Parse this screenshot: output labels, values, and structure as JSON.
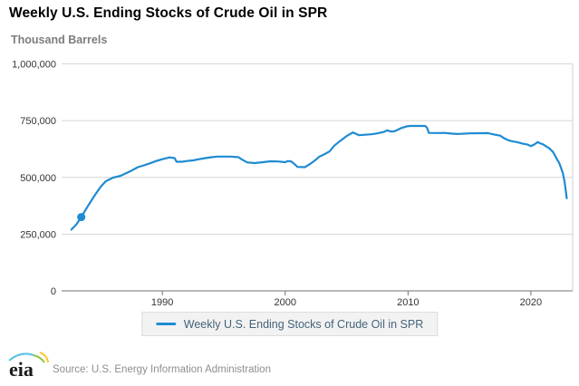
{
  "title": "Weekly U.S. Ending Stocks of Crude Oil in SPR",
  "units_label": "Thousand Barrels",
  "legend": {
    "label": "Weekly U.S. Ending Stocks of Crude Oil in SPR"
  },
  "footer": {
    "logo_text": "eia",
    "source": "Source: U.S. Energy Information Administration"
  },
  "colors": {
    "line": "#1e8bd2",
    "grid": "#d6d6d6",
    "zero_axis": "#707070",
    "plot_border": "#cfcfcf",
    "tick_text": "#333333",
    "title_text": "#000000",
    "units_text": "#7d7d7d",
    "legend_bg": "#f2f2f2",
    "legend_text": "#44637a",
    "source_text": "#8e8e8e",
    "logo_blue": "#5bc2e7",
    "logo_green": "#8dc63f",
    "logo_yellow": "#ffc425"
  },
  "chart_data": {
    "type": "line",
    "title": "Weekly U.S. Ending Stocks of Crude Oil in SPR",
    "ylabel": "Thousand Barrels",
    "xlabel": "",
    "grid": "horizontal",
    "legend_position": "bottom",
    "x_range": [
      1981.8,
      2023.4
    ],
    "y_range": [
      0,
      1000000
    ],
    "x_ticks": [
      1990,
      2000,
      2010,
      2020
    ],
    "x_tick_labels": [
      "1990",
      "2000",
      "2010",
      "2020"
    ],
    "y_ticks": [
      0,
      250000,
      500000,
      750000,
      1000000
    ],
    "y_tick_labels": [
      "0",
      "250,000",
      "500,000",
      "750,000",
      "1,000,000"
    ],
    "highlight_point": {
      "x": 1983.4,
      "y": 325000
    },
    "series": [
      {
        "name": "Weekly U.S. Ending Stocks of Crude Oil in SPR",
        "color": "#1e8bd2",
        "points": [
          [
            1982.6,
            270000
          ],
          [
            1983.0,
            293000
          ],
          [
            1983.4,
            325000
          ],
          [
            1984.0,
            379000
          ],
          [
            1984.5,
            421000
          ],
          [
            1985.0,
            460000
          ],
          [
            1985.4,
            483000
          ],
          [
            1986.0,
            499000
          ],
          [
            1986.6,
            507000
          ],
          [
            1987.0,
            517000
          ],
          [
            1987.5,
            530000
          ],
          [
            1988.0,
            545000
          ],
          [
            1988.5,
            553000
          ],
          [
            1989.0,
            562000
          ],
          [
            1989.5,
            572000
          ],
          [
            1990.0,
            580000
          ],
          [
            1990.6,
            588000
          ],
          [
            1991.0,
            585000
          ],
          [
            1991.15,
            569000
          ],
          [
            1991.6,
            569000
          ],
          [
            1992.0,
            572000
          ],
          [
            1992.5,
            575000
          ],
          [
            1993.0,
            580000
          ],
          [
            1993.5,
            585000
          ],
          [
            1994.0,
            589000
          ],
          [
            1994.5,
            591500
          ],
          [
            1995.5,
            591500
          ],
          [
            1996.2,
            589000
          ],
          [
            1996.5,
            578000
          ],
          [
            1996.9,
            566000
          ],
          [
            1997.5,
            563000
          ],
          [
            1998.2,
            567000
          ],
          [
            1998.8,
            571000
          ],
          [
            1999.4,
            570000
          ],
          [
            2000.0,
            567000
          ],
          [
            2000.2,
            572000
          ],
          [
            2000.5,
            570000
          ],
          [
            2000.75,
            559000
          ],
          [
            2001.0,
            546000
          ],
          [
            2001.6,
            545000
          ],
          [
            2002.0,
            558000
          ],
          [
            2002.5,
            578000
          ],
          [
            2002.8,
            592000
          ],
          [
            2003.2,
            602000
          ],
          [
            2003.6,
            614000
          ],
          [
            2004.0,
            640000
          ],
          [
            2004.5,
            662000
          ],
          [
            2005.0,
            682000
          ],
          [
            2005.5,
            698000
          ],
          [
            2005.8,
            691000
          ],
          [
            2006.0,
            686000
          ],
          [
            2006.5,
            688000
          ],
          [
            2007.0,
            690000
          ],
          [
            2007.5,
            694000
          ],
          [
            2008.0,
            700000
          ],
          [
            2008.3,
            707000
          ],
          [
            2008.6,
            702000
          ],
          [
            2008.9,
            703000
          ],
          [
            2009.4,
            716000
          ],
          [
            2009.9,
            725000
          ],
          [
            2010.2,
            726500
          ],
          [
            2011.4,
            726500
          ],
          [
            2011.55,
            718000
          ],
          [
            2011.7,
            696000
          ],
          [
            2012.5,
            695500
          ],
          [
            2013.0,
            696000
          ],
          [
            2013.5,
            693000
          ],
          [
            2014.0,
            691000
          ],
          [
            2015.0,
            694000
          ],
          [
            2016.5,
            695000
          ],
          [
            2017.0,
            689000
          ],
          [
            2017.5,
            684000
          ],
          [
            2017.8,
            673000
          ],
          [
            2018.1,
            665000
          ],
          [
            2018.4,
            660000
          ],
          [
            2018.9,
            655000
          ],
          [
            2019.3,
            649000
          ],
          [
            2019.7,
            645000
          ],
          [
            2020.0,
            638000
          ],
          [
            2020.3,
            646000
          ],
          [
            2020.55,
            656000
          ],
          [
            2020.75,
            650000
          ],
          [
            2021.0,
            645000
          ],
          [
            2021.2,
            638000
          ],
          [
            2021.5,
            628000
          ],
          [
            2021.8,
            612000
          ],
          [
            2022.0,
            593000
          ],
          [
            2022.15,
            577000
          ],
          [
            2022.3,
            564000
          ],
          [
            2022.45,
            543000
          ],
          [
            2022.6,
            518000
          ],
          [
            2022.75,
            478000
          ],
          [
            2022.85,
            438000
          ],
          [
            2022.92,
            408000
          ]
        ]
      }
    ]
  }
}
